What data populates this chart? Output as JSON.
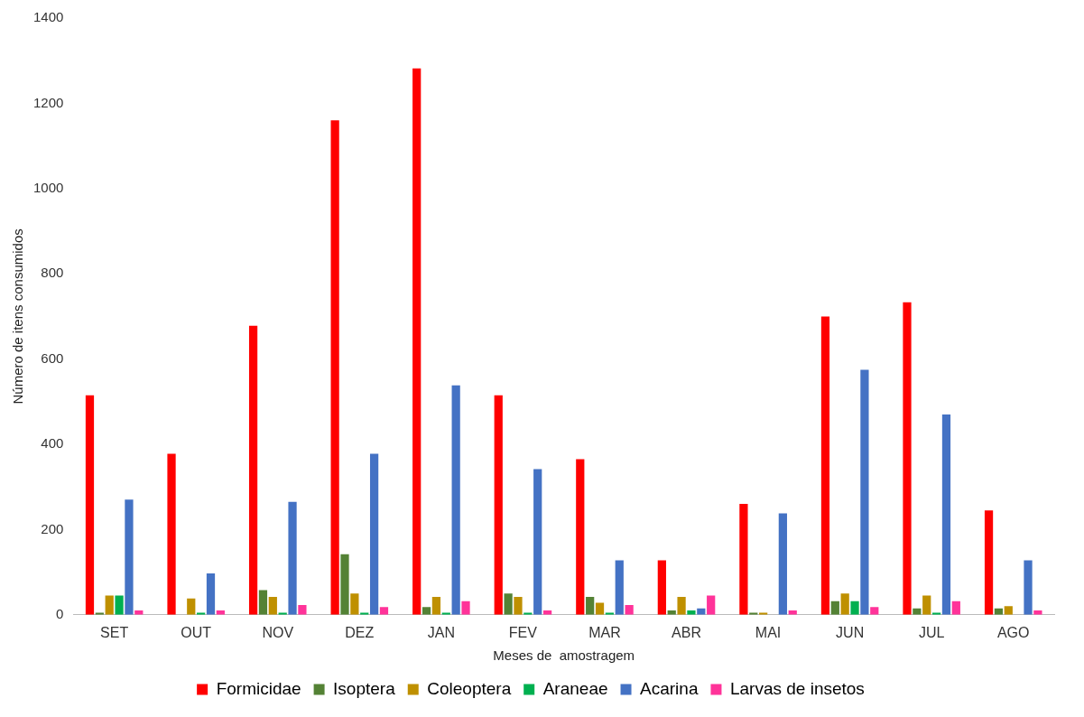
{
  "chart_data": {
    "type": "bar",
    "xlabel": "Meses de  amostragem",
    "ylabel": "Número de itens consumidos",
    "categories": [
      "SET",
      "OUT",
      "NOV",
      "DEZ",
      "JAN",
      "FEV",
      "MAR",
      "ABR",
      "MAI",
      "JUN",
      "JUL",
      "AGO"
    ],
    "series": [
      {
        "name": "Formicidae",
        "color": "#ff0000",
        "values": [
          515,
          378,
          678,
          1160,
          1282,
          515,
          365,
          128,
          260,
          700,
          733,
          245
        ]
      },
      {
        "name": "Isoptera",
        "color": "#548235",
        "values": [
          5,
          0,
          58,
          142,
          18,
          50,
          42,
          10,
          5,
          32,
          15,
          15
        ]
      },
      {
        "name": "Coleoptera",
        "color": "#bf9000",
        "values": [
          45,
          38,
          42,
          50,
          42,
          42,
          28,
          42,
          5,
          50,
          45,
          20
        ]
      },
      {
        "name": "Araneae",
        "color": "#00b050",
        "values": [
          45,
          5,
          5,
          5,
          5,
          5,
          5,
          10,
          0,
          32,
          5,
          0
        ]
      },
      {
        "name": "Acarina",
        "color": "#4472c4",
        "values": [
          270,
          97,
          265,
          378,
          538,
          342,
          128,
          15,
          238,
          575,
          470,
          128
        ]
      },
      {
        "name": "Larvas de insetos",
        "color": "#ff3399",
        "values": [
          10,
          10,
          23,
          18,
          32,
          10,
          23,
          45,
          10,
          18,
          32,
          10
        ]
      }
    ],
    "ylim": [
      0,
      1400
    ],
    "yticks": [
      0,
      200,
      400,
      600,
      800,
      1000,
      1200,
      1400
    ],
    "grid": false,
    "legend": "bottom"
  }
}
